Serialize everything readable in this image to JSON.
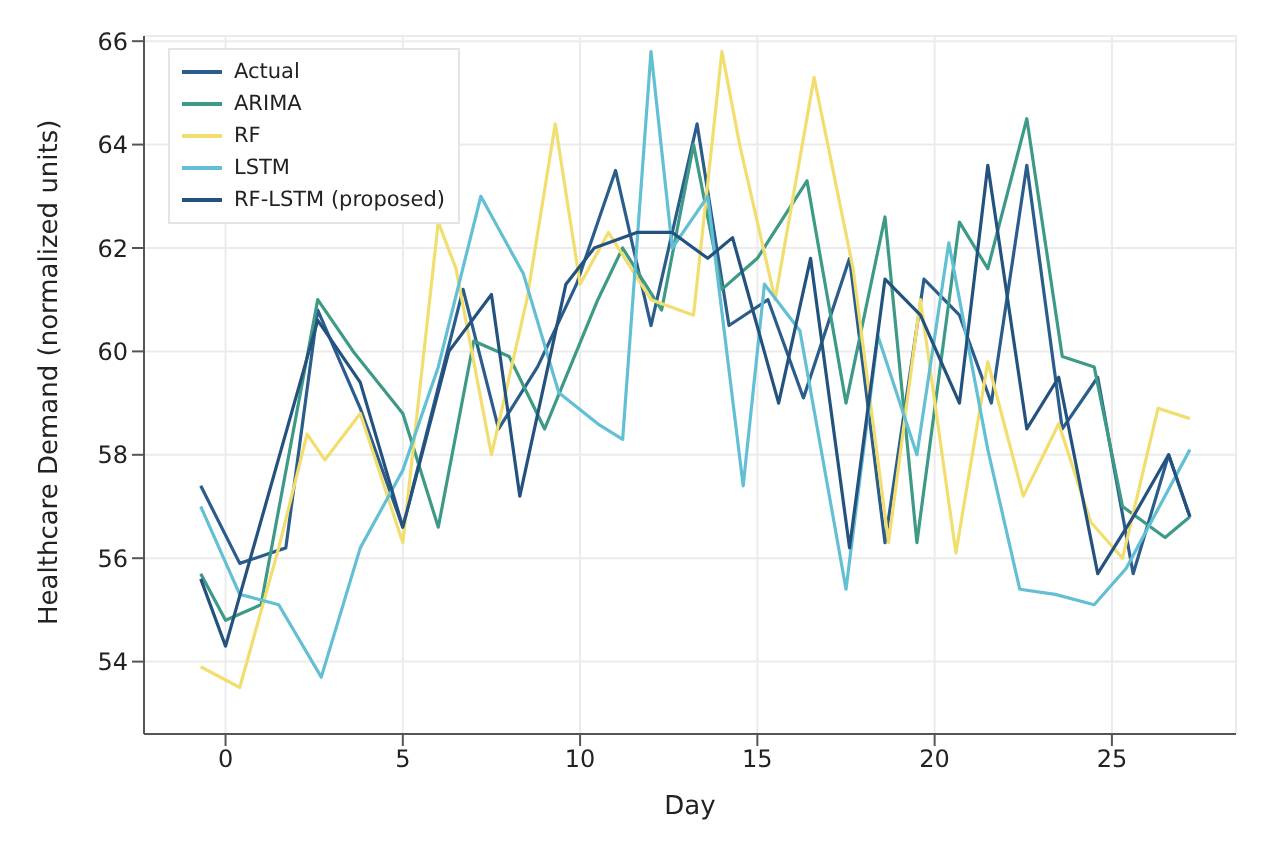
{
  "chart_data": {
    "type": "line",
    "xlabel": "Day",
    "ylabel": "Healthcare Demand (normalized units)",
    "xlim": [
      -2.3,
      28.5
    ],
    "xticks": [
      0,
      5,
      10,
      15,
      20,
      25
    ],
    "ylim": [
      52.6,
      66.1
    ],
    "yticks": [
      54,
      56,
      58,
      60,
      62,
      64,
      66
    ],
    "grid": true,
    "legend": "top left",
    "marker": "none",
    "line_style": "solid",
    "series": [
      {
        "name": "Actual",
        "color": "#2b5d8c",
        "x": [
          -0.7,
          0.4,
          1.7,
          2.6,
          3.8,
          5,
          6.7,
          7.7,
          8.8,
          9.9,
          11,
          12,
          13.3,
          14.2,
          15.3,
          16.3,
          17.6,
          18.6,
          19.7,
          20.7,
          21.6,
          22.6,
          23.6,
          24.6,
          25.6,
          26.6,
          27.2
        ],
        "values": [
          57.4,
          55.9,
          56.2,
          60.8,
          58.9,
          56.6,
          61.2,
          58.5,
          59.7,
          61.3,
          63.5,
          60.5,
          64.4,
          60.5,
          61.0,
          59.1,
          61.8,
          56.3,
          61.4,
          60.7,
          59.0,
          63.6,
          58.5,
          59.5,
          55.7,
          58.0,
          56.8
        ]
      },
      {
        "name": "ARIMA",
        "color": "#3d9a86",
        "x": [
          -0.7,
          0,
          1,
          2.6,
          3.6,
          5,
          6,
          7,
          8,
          9,
          10.5,
          11.2,
          12.3,
          13.2,
          14,
          15,
          16.4,
          17.5,
          18.6,
          19.5,
          20.7,
          21.5,
          22.6,
          23.6,
          24.5,
          25.3,
          26.5,
          27.2
        ],
        "values": [
          55.7,
          54.8,
          55.1,
          61.0,
          60.0,
          58.8,
          56.6,
          60.2,
          59.9,
          58.5,
          61.0,
          62.0,
          60.8,
          64.0,
          61.2,
          61.8,
          63.3,
          59.0,
          62.6,
          56.3,
          62.5,
          61.6,
          64.5,
          59.9,
          59.7,
          57.0,
          56.4,
          56.8
        ]
      },
      {
        "name": "RF",
        "color": "#f1de6e",
        "x": [
          -0.7,
          0.4,
          1.5,
          2.3,
          2.8,
          3.8,
          5,
          6,
          6.5,
          7.5,
          8.5,
          9.3,
          10,
          10.8,
          12,
          13.2,
          14,
          14.5,
          15.5,
          16.6,
          17.7,
          18.7,
          19.6,
          20.6,
          21.5,
          22.5,
          23.5,
          24.4,
          25.3,
          26.3,
          27.2
        ],
        "values": [
          53.9,
          53.5,
          56.2,
          58.4,
          57.9,
          58.8,
          56.3,
          62.5,
          61.6,
          58.0,
          61.0,
          64.4,
          61.3,
          62.3,
          61.0,
          60.7,
          65.8,
          64.0,
          61.0,
          65.3,
          61.6,
          56.3,
          61.0,
          56.1,
          59.8,
          57.2,
          58.6,
          56.7,
          56.0,
          58.9,
          58.7
        ]
      },
      {
        "name": "LSTM",
        "color": "#63bfd3",
        "x": [
          -0.7,
          0.4,
          1.5,
          2.7,
          3.8,
          5,
          6,
          7.2,
          8.4,
          9.4,
          10.5,
          11.2,
          12,
          12.6,
          13.6,
          14.6,
          15.2,
          16.2,
          17.5,
          18.4,
          19.5,
          20.4,
          21.5,
          22.4,
          23.4,
          24.5,
          25.4,
          27.2
        ],
        "values": [
          57.0,
          55.3,
          55.1,
          53.7,
          56.2,
          57.7,
          59.7,
          63.0,
          61.5,
          59.2,
          58.6,
          58.3,
          65.8,
          62.0,
          63.0,
          57.4,
          61.3,
          60.4,
          55.4,
          60.3,
          58.0,
          62.1,
          58.1,
          55.4,
          55.3,
          55.1,
          55.8,
          58.1
        ]
      },
      {
        "name": "RF-LSTM (proposed)",
        "color": "#24527f",
        "x": [
          -0.7,
          0,
          2.6,
          3.8,
          5,
          6.3,
          7.5,
          8.3,
          9.6,
          10.4,
          11.6,
          12.6,
          13.6,
          14.3,
          15.6,
          16.5,
          17.6,
          18.6,
          19.6,
          20.7,
          21.5,
          22.6,
          23.5,
          24.6,
          25.6,
          26.6,
          27.2
        ],
        "values": [
          55.6,
          54.3,
          60.6,
          59.4,
          56.6,
          60.0,
          61.1,
          57.2,
          61.3,
          62.0,
          62.3,
          62.3,
          61.8,
          62.2,
          59.0,
          61.8,
          56.2,
          61.4,
          60.7,
          59.0,
          63.6,
          58.5,
          59.5,
          55.7,
          56.8,
          58.0,
          56.8
        ]
      }
    ]
  }
}
